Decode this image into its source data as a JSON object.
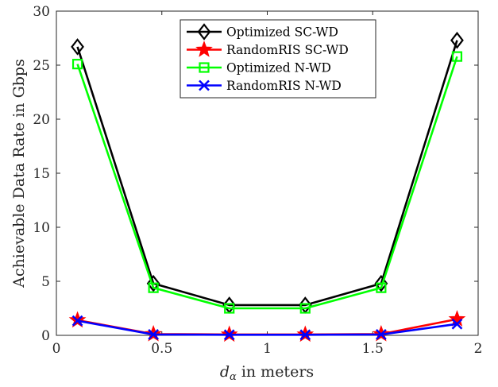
{
  "chart_data": {
    "type": "line",
    "xlabel_symbol": "d",
    "xlabel_subscript": "α",
    "xlabel_rest": " in meters",
    "ylabel": "Achievable Data Rate in Gbps",
    "xlim": [
      0,
      2
    ],
    "ylim": [
      0,
      30
    ],
    "x_ticks": [
      0,
      0.5,
      1,
      1.5,
      2
    ],
    "x_tick_labels": [
      "0",
      "0.5",
      "1",
      "1.5",
      "2"
    ],
    "y_ticks": [
      0,
      5,
      10,
      15,
      20,
      25,
      30
    ],
    "y_tick_labels": [
      "0",
      "5",
      "10",
      "15",
      "20",
      "25",
      "30"
    ],
    "grid": false,
    "legend_position": "top-center",
    "x": [
      0.1,
      0.46,
      0.82,
      1.18,
      1.54,
      1.9
    ],
    "series": [
      {
        "name": "Optimized SC-WD",
        "color": "#000000",
        "marker": "diamond",
        "values": [
          26.7,
          4.8,
          2.8,
          2.8,
          4.8,
          27.3
        ]
      },
      {
        "name": "RandomRIS SC-WD",
        "color": "#ff0000",
        "marker": "star",
        "values": [
          1.4,
          0.12,
          0.08,
          0.08,
          0.12,
          1.5
        ]
      },
      {
        "name": "Optimized N-WD",
        "color": "#00ff00",
        "marker": "square",
        "values": [
          25.1,
          4.4,
          2.5,
          2.5,
          4.4,
          25.8
        ]
      },
      {
        "name": "RandomRIS N-WD",
        "color": "#0000ff",
        "marker": "x",
        "values": [
          1.35,
          0.08,
          0.05,
          0.05,
          0.08,
          1.05
        ]
      }
    ]
  }
}
